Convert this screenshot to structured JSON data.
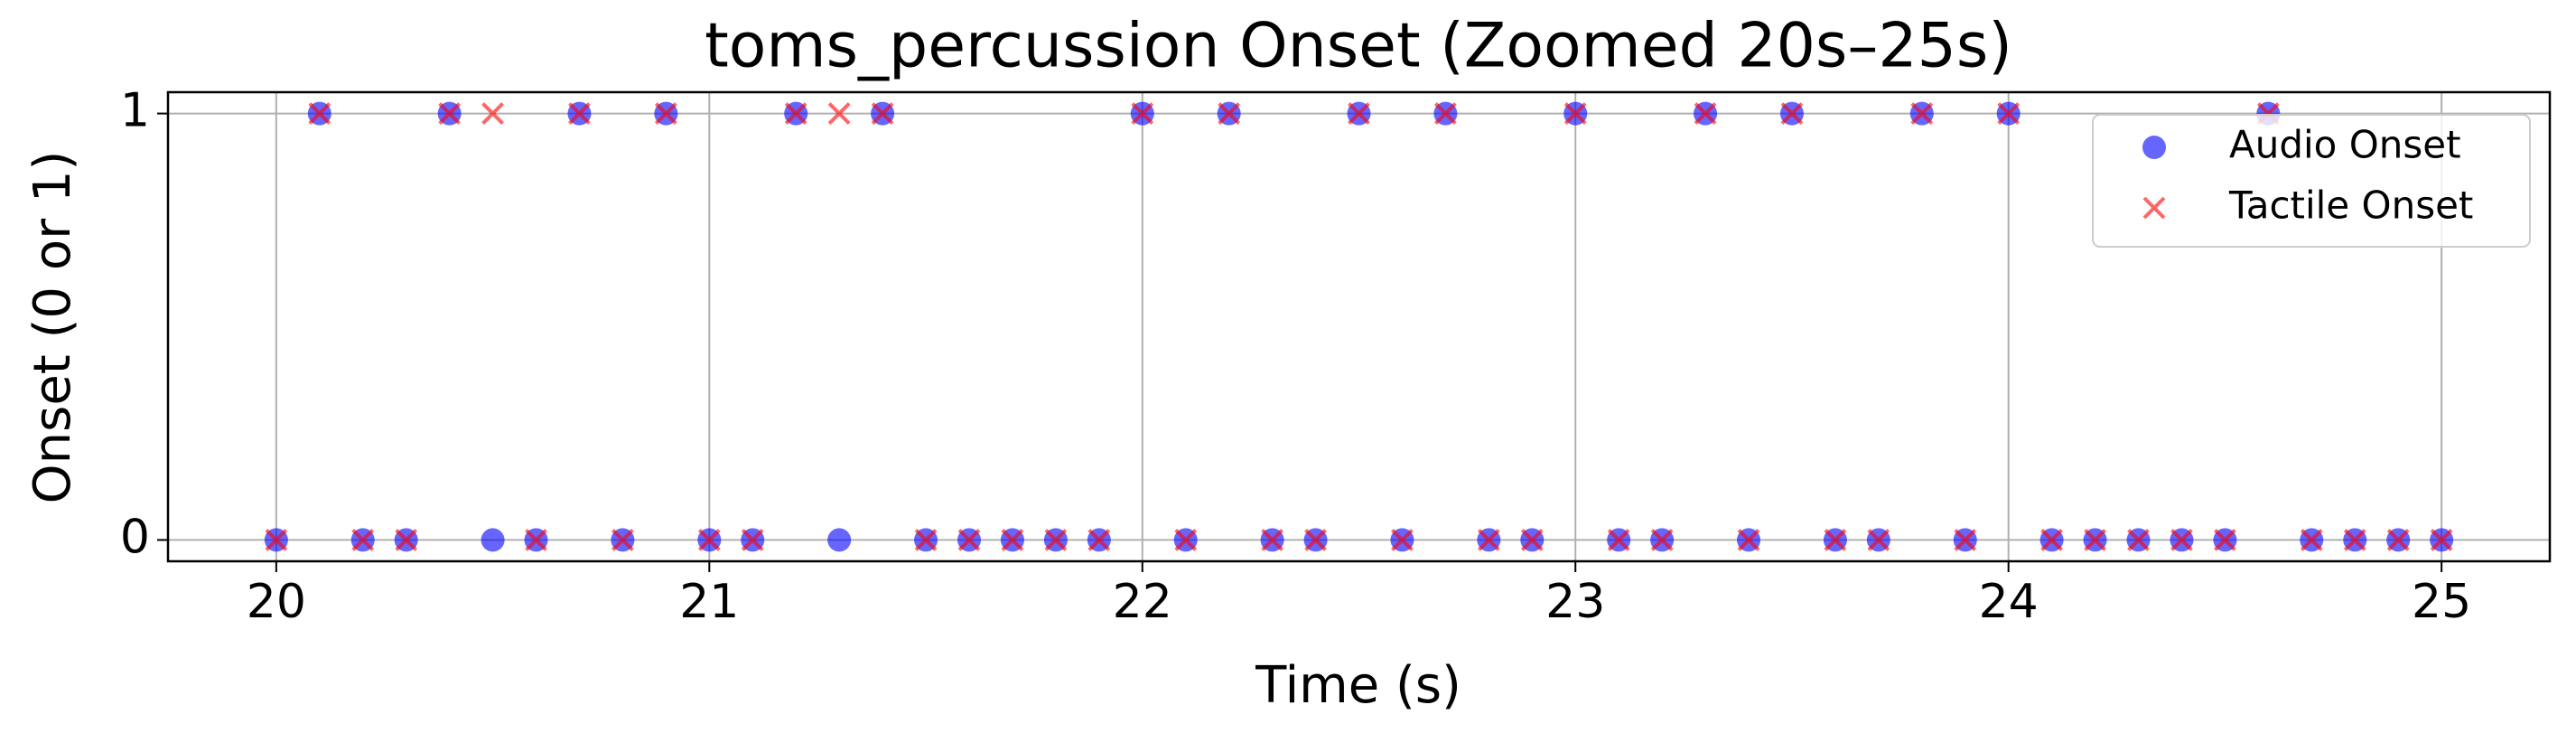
{
  "chart_data": {
    "type": "scatter",
    "title": "toms_percussion Onset (Zoomed 20s–25s)",
    "x_label": "Time (s)",
    "y_label": "Onset (0 or 1)",
    "x": [
      20.0,
      20.1,
      20.2,
      20.3,
      20.4,
      20.5,
      20.6,
      20.7,
      20.8,
      20.9,
      21.0,
      21.1,
      21.2,
      21.3,
      21.4,
      21.5,
      21.6,
      21.7,
      21.8,
      21.9,
      22.0,
      22.1,
      22.2,
      22.3,
      22.4,
      22.5,
      22.6,
      22.7,
      22.8,
      22.9,
      23.0,
      23.1,
      23.2,
      23.3,
      23.4,
      23.5,
      23.6,
      23.7,
      23.8,
      23.9,
      24.0,
      24.1,
      24.2,
      24.3,
      24.4,
      24.5,
      24.6,
      24.7,
      24.8,
      24.9,
      25.0
    ],
    "series": [
      {
        "name": "Audio Onset",
        "color": "#0000ff",
        "marker": "o",
        "values": [
          0,
          1,
          0,
          0,
          1,
          0,
          0,
          1,
          0,
          1,
          0,
          0,
          1,
          0,
          1,
          0,
          0,
          0,
          0,
          0,
          1,
          0,
          1,
          0,
          0,
          1,
          0,
          1,
          0,
          0,
          1,
          0,
          0,
          1,
          0,
          1,
          0,
          0,
          1,
          0,
          1,
          0,
          0,
          0,
          0,
          0,
          1,
          0,
          0,
          0,
          0
        ]
      },
      {
        "name": "Tactile Onset",
        "color": "#ff0000",
        "marker": "x",
        "values": [
          0,
          1,
          0,
          0,
          1,
          1,
          0,
          1,
          0,
          1,
          0,
          0,
          1,
          1,
          1,
          0,
          0,
          0,
          0,
          0,
          1,
          0,
          1,
          0,
          0,
          1,
          0,
          1,
          0,
          0,
          1,
          0,
          0,
          1,
          0,
          1,
          0,
          0,
          1,
          0,
          1,
          0,
          0,
          0,
          0,
          0,
          1,
          0,
          0,
          0,
          0
        ]
      }
    ],
    "xlim": [
      19.75,
      25.25
    ],
    "ylim": [
      -0.05,
      1.05
    ],
    "xticks": [
      20,
      21,
      22,
      23,
      24,
      25
    ],
    "yticks": [
      0,
      1
    ],
    "grid": true,
    "legend": "upper right"
  }
}
